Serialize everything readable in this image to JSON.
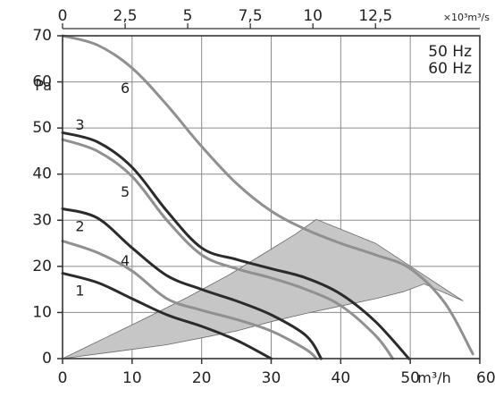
{
  "chart_data": {
    "type": "line",
    "bottom_axis": {
      "ticks": [
        "0",
        "10",
        "20",
        "30",
        "40",
        "50",
        "60"
      ],
      "tick_values": [
        0,
        10,
        20,
        30,
        40,
        50,
        60
      ],
      "unit": "m³/h",
      "range": [
        0,
        60
      ]
    },
    "top_axis": {
      "ticks": [
        "0",
        "2,5",
        "5",
        "7,5",
        "10",
        "12,5"
      ],
      "tick_values": [
        0,
        2.5,
        5,
        7.5,
        10,
        12.5
      ],
      "unit": "×10³m³/s",
      "range": [
        0,
        16.667
      ]
    },
    "left_axis": {
      "ticks": [
        "0",
        "10",
        "20",
        "30",
        "40",
        "50",
        "60",
        "70"
      ],
      "tick_values": [
        0,
        10,
        20,
        30,
        40,
        50,
        60,
        70
      ],
      "unit": "Pa",
      "range": [
        0,
        70
      ]
    },
    "grid": true,
    "legend": {
      "position": "top-right",
      "entries": [
        "50 Hz",
        "60 Hz"
      ]
    },
    "colors": {
      "dark": "#2b2b2b",
      "light": "#909090",
      "region": "#c6c6c6",
      "grid": "#8c8c8c"
    },
    "operating_region": {
      "label": "",
      "points": [
        [
          0,
          0
        ],
        [
          5,
          1
        ],
        [
          10,
          2
        ],
        [
          15,
          3
        ],
        [
          20,
          4.5
        ],
        [
          25,
          6
        ],
        [
          30,
          8
        ],
        [
          35,
          9.8
        ],
        [
          40,
          11.4
        ],
        [
          45,
          13
        ],
        [
          49,
          14.5
        ],
        [
          52,
          16.2
        ],
        [
          57.6,
          12.5
        ],
        [
          45,
          25
        ],
        [
          36.5,
          30.2
        ],
        [
          33.5,
          27
        ],
        [
          29,
          22.8
        ],
        [
          24,
          18.2
        ],
        [
          18,
          13.3
        ],
        [
          12,
          8.8
        ],
        [
          6,
          4.4
        ],
        [
          0,
          0
        ]
      ]
    },
    "series": [
      {
        "name": "1",
        "shade": "dark",
        "label_at": [
          2.5,
          14.5
        ],
        "x": [
          0,
          5,
          10,
          15,
          20,
          25,
          30
        ],
        "y": [
          18.5,
          16.5,
          13,
          9.5,
          7,
          4,
          0
        ]
      },
      {
        "name": "2",
        "shade": "dark",
        "label_at": [
          2.5,
          28.5
        ],
        "x": [
          0,
          5,
          10,
          15,
          20,
          25,
          30,
          35,
          37.2
        ],
        "y": [
          32.5,
          30.5,
          24,
          18,
          15,
          12.5,
          9.5,
          5,
          0
        ]
      },
      {
        "name": "3",
        "shade": "dark",
        "label_at": [
          2.5,
          50.5
        ],
        "x": [
          0,
          5,
          10,
          15,
          20,
          25,
          30,
          35,
          40,
          45,
          49.8
        ],
        "y": [
          49,
          47,
          41.5,
          32,
          24,
          21.5,
          19.5,
          17.5,
          14,
          8,
          0
        ]
      },
      {
        "name": "4",
        "shade": "light",
        "label_at": [
          9,
          21
        ],
        "x": [
          0,
          5,
          10,
          15,
          20,
          25,
          30,
          35,
          36.5
        ],
        "y": [
          25.5,
          23,
          19,
          13,
          10.5,
          8.5,
          6,
          2,
          0
        ]
      },
      {
        "name": "5",
        "shade": "light",
        "label_at": [
          9,
          36
        ],
        "x": [
          0,
          5,
          10,
          15,
          20,
          25,
          30,
          35,
          40,
          45,
          47.5
        ],
        "y": [
          47.5,
          45,
          39.5,
          30,
          22.5,
          19.5,
          17.5,
          15,
          11.5,
          5,
          0
        ]
      },
      {
        "name": "6",
        "shade": "light",
        "label_at": [
          9,
          58.5
        ],
        "x": [
          0,
          5,
          10,
          15,
          20,
          25,
          30,
          35,
          40,
          45,
          50,
          55,
          59
        ],
        "y": [
          70,
          68,
          63,
          55,
          46,
          38,
          32,
          28,
          25,
          22.5,
          19.5,
          12,
          1
        ]
      }
    ]
  }
}
